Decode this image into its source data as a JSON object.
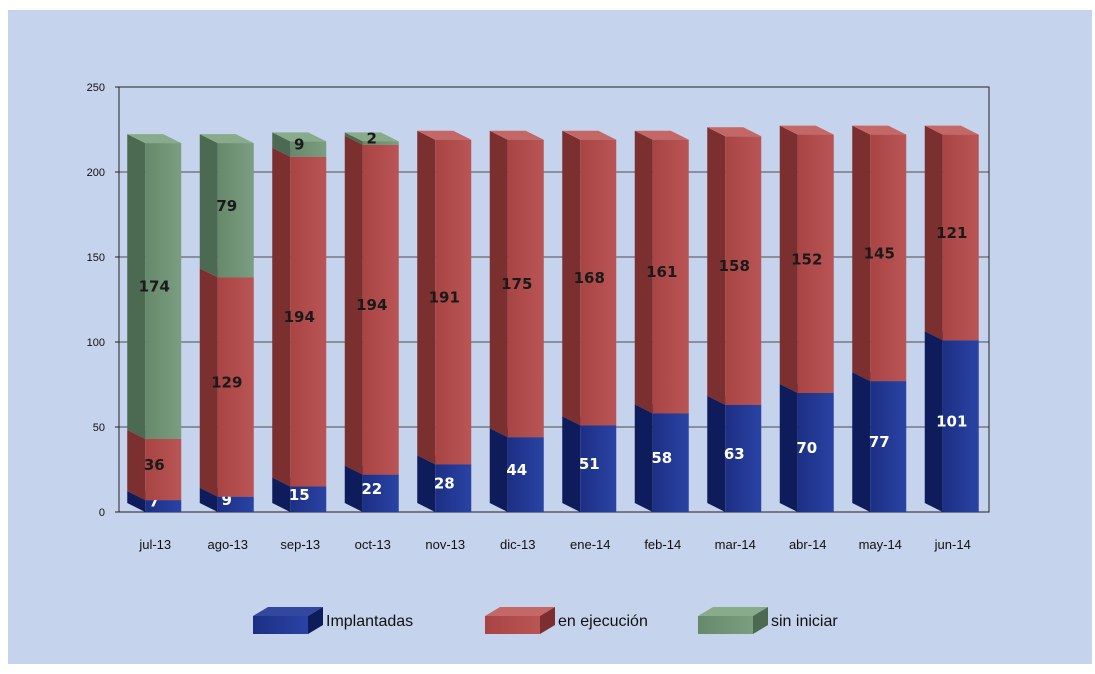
{
  "chart_data": {
    "type": "bar",
    "stacked": true,
    "categories": [
      "jul-13",
      "ago-13",
      "sep-13",
      "oct-13",
      "nov-13",
      "dic-13",
      "ene-14",
      "feb-14",
      "mar-14",
      "abr-14",
      "may-14",
      "jun-14"
    ],
    "series": [
      {
        "name": "Implantadas",
        "color": "#1a2e7e",
        "values": [
          7,
          9,
          15,
          22,
          28,
          44,
          51,
          58,
          63,
          70,
          77,
          101
        ]
      },
      {
        "name": "en ejecución",
        "color": "#b04a4a",
        "values": [
          36,
          129,
          194,
          194,
          191,
          175,
          168,
          161,
          158,
          152,
          145,
          121
        ]
      },
      {
        "name": "sin iniciar",
        "color": "#6f9272",
        "values": [
          174,
          79,
          9,
          2,
          0,
          0,
          0,
          0,
          0,
          0,
          0,
          0
        ]
      }
    ],
    "yticks": [
      0,
      50,
      100,
      150,
      200,
      250
    ],
    "ylim": [
      0,
      250
    ],
    "grid": "horizontal",
    "legend_position": "bottom",
    "title": "",
    "xlabel": "",
    "ylabel": ""
  }
}
